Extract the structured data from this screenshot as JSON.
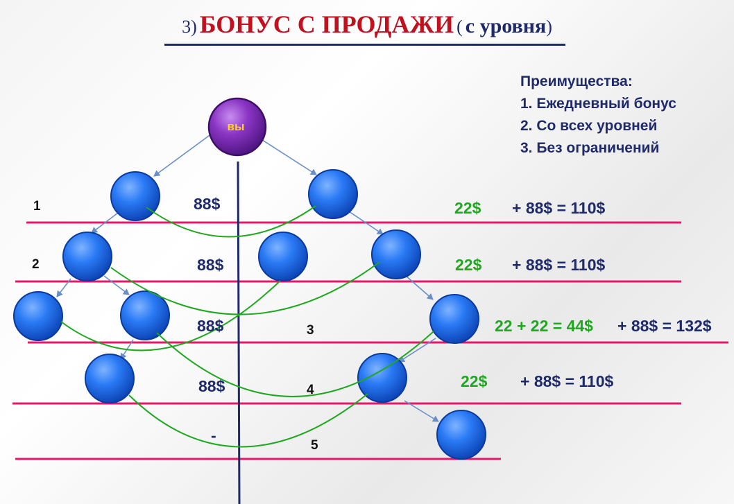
{
  "title": {
    "number": "3)",
    "main": "БОНУС С ПРОДАЖИ",
    "paren_open": "(",
    "sub": "с уровня",
    "paren_close": ")"
  },
  "advantages": {
    "heading": "Преимущества:",
    "items": [
      "1. Ежедневный бонус",
      "2. Со всех уровней",
      "3. Без ограничений"
    ]
  },
  "root_node": {
    "label": "вы",
    "color": "#7b2fb5",
    "label_color": "#ffd600"
  },
  "level_numbers_left": [
    "1",
    "2"
  ],
  "level_numbers_mid": [
    "3",
    "4",
    "5"
  ],
  "left_amounts": [
    "88$",
    "88$",
    "88$",
    "88$",
    "-"
  ],
  "green_bonuses": [
    "22$",
    "22$",
    "22 + 22 = 44$",
    "22$"
  ],
  "total_formulas": [
    "+ 88$ = 110$",
    "+ 88$ = 110$",
    "+ 88$ = 132$",
    "+ 88$ = 110$"
  ],
  "colors": {
    "line": "#e8176a",
    "green": "#1fa81f",
    "navy": "#1f2a6b",
    "node": "#1e6ff0",
    "arrow": "#6a8fc8",
    "axis": "#1f2a6b"
  }
}
